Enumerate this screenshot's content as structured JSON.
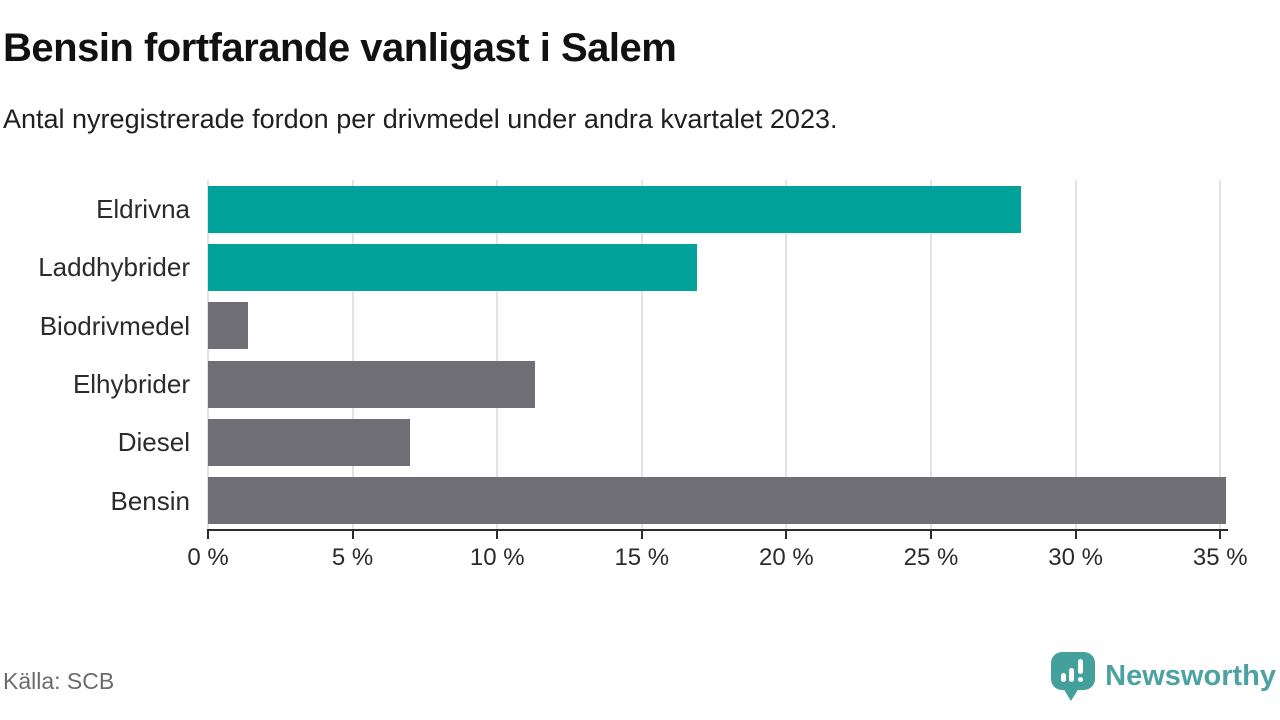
{
  "header": {
    "title": "Bensin fortfarande vanligast i Salem",
    "subtitle": "Antal nyregistrerade fordon per drivmedel under andra kvartalet 2023."
  },
  "chart_data": {
    "type": "bar",
    "orientation": "horizontal",
    "categories": [
      "Eldrivna",
      "Laddhybrider",
      "Biodrivmedel",
      "Elhybrider",
      "Diesel",
      "Bensin"
    ],
    "values": [
      28.1,
      16.9,
      1.4,
      11.3,
      7.0,
      35.2
    ],
    "unit": "%",
    "bar_colors": [
      "#00A29A",
      "#00A29A",
      "#6E6E74",
      "#6E6E74",
      "#6E6E74",
      "#6E6E74"
    ],
    "title": "Bensin fortfarande vanligast i Salem",
    "xlabel": "",
    "ylabel": "",
    "xlim": [
      0,
      35.2
    ],
    "x_ticks": [
      0,
      5,
      10,
      15,
      20,
      25,
      30,
      35
    ],
    "x_tick_labels": [
      "0 %",
      "5 %",
      "10 %",
      "15 %",
      "20 %",
      "25 %",
      "30 %",
      "35 %"
    ],
    "grid": "vertical",
    "legend": "none"
  },
  "footer": {
    "source": "Källa: SCB",
    "brand": "Newsworthy"
  },
  "colors": {
    "accent_teal": "#00A29A",
    "bar_gray": "#6E6E74",
    "gridline": "#E3E3E3",
    "axis": "#2B2B2B",
    "logo_teal": "#43A09C",
    "brand_text_teal": "#4BA2A0",
    "source_text": "#6B6B6B"
  }
}
